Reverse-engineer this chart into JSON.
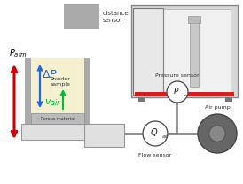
{
  "bg_color": "#ffffff",
  "distance_sensor_label": "distance\nsensor",
  "patm_label": "P",
  "patm_sub": "atm",
  "tube_fill_color": "#f5f0d0",
  "delta_p_color": "#2266dd",
  "powder_label": "Powder\nsample",
  "vair_color": "#00bb33",
  "porous_label": "Porous material",
  "red_arrow_color": "#cc0000",
  "flow_label": "Flow sensor",
  "pressure_label": "Pressure sensor",
  "air_pump_label": "Air pump",
  "tube_wall_color": "#aaaaaa",
  "porous_color": "#bbbbbb",
  "platform_color": "#cccccc",
  "pipe_color": "#888888",
  "circle_edge": "#555555"
}
